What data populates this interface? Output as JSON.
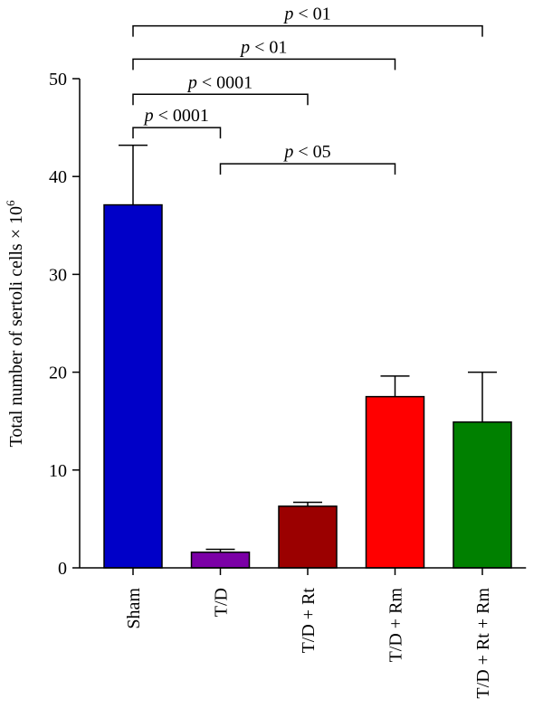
{
  "chart_data": {
    "type": "bar",
    "title": "",
    "xlabel": "",
    "ylabel": "Total number of sertoli cells × 10",
    "ylabel_superscript": "6",
    "ylim": [
      0,
      50
    ],
    "yticks": [
      0,
      10,
      20,
      30,
      40,
      50
    ],
    "categories": [
      "Sham",
      "T/D",
      "T/D + Rt",
      "T/D + Rm",
      "T/D + Rt + Rm"
    ],
    "values": [
      37.1,
      1.6,
      6.3,
      17.5,
      14.9
    ],
    "errors": [
      6.1,
      0.3,
      0.4,
      2.1,
      5.1
    ],
    "colors": [
      "#0000c8",
      "#7b00a6",
      "#9b0000",
      "#ff0000",
      "#008000"
    ],
    "grid": false,
    "significance": [
      {
        "from": 0,
        "to": 1,
        "level": 45,
        "p": "p",
        "text": " < 0001"
      },
      {
        "from": 0,
        "to": 2,
        "level": 48.4,
        "p": "p",
        "text": " < 0001"
      },
      {
        "from": 0,
        "to": 3,
        "level": 52,
        "p": "p",
        "text": " < 01"
      },
      {
        "from": 0,
        "to": 4,
        "level": 55.4,
        "p": "p",
        "text": " < 01"
      },
      {
        "from": 1,
        "to": 3,
        "level": 41.3,
        "p": "p",
        "text": " < 05"
      }
    ]
  }
}
